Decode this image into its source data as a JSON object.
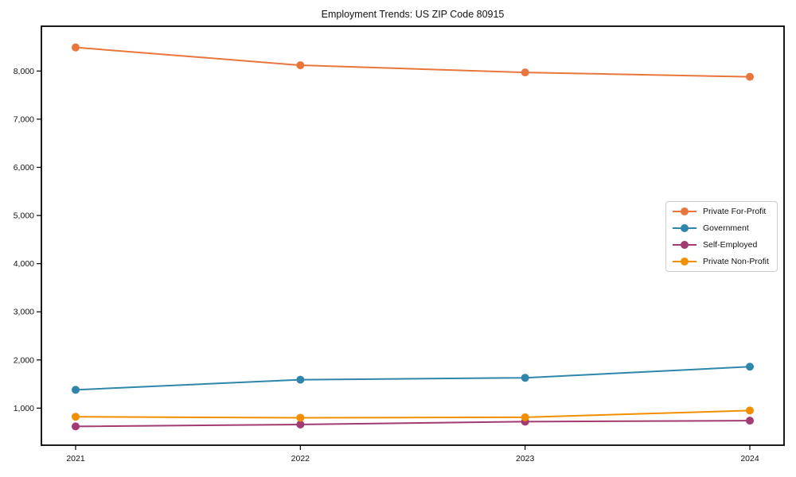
{
  "title": "Employment Trends: US ZIP Code 80915",
  "chart_data": {
    "type": "line",
    "title": "Employment Trends: US ZIP Code 80915",
    "xlabel": "",
    "ylabel": "",
    "x_labels": [
      "2021",
      "2022",
      "2023",
      "2024"
    ],
    "series": [
      {
        "name": "Private For-Profit",
        "color": "#e8763c",
        "values": [
          8490,
          8120,
          7970,
          7880
        ]
      },
      {
        "name": "Government",
        "color": "#2e86ab",
        "values": [
          1380,
          1590,
          1630,
          1860
        ]
      },
      {
        "name": "Self-Employed",
        "color": "#a23b72",
        "values": [
          620,
          660,
          720,
          740
        ]
      },
      {
        "name": "Private Non-Profit",
        "color": "#f18f01",
        "values": [
          820,
          800,
          810,
          950
        ]
      }
    ],
    "yticks": [
      1000,
      2000,
      3000,
      4000,
      5000,
      6000,
      7000,
      8000
    ],
    "ytick_labels": [
      "1,000",
      "2,000",
      "3,000",
      "4,000",
      "5,000",
      "6,000",
      "7,000",
      "8,000"
    ],
    "ylim": [
      230,
      8930
    ],
    "grid": false,
    "legend_position": "center-right",
    "marker": "circle",
    "axis_color": "#000000"
  }
}
